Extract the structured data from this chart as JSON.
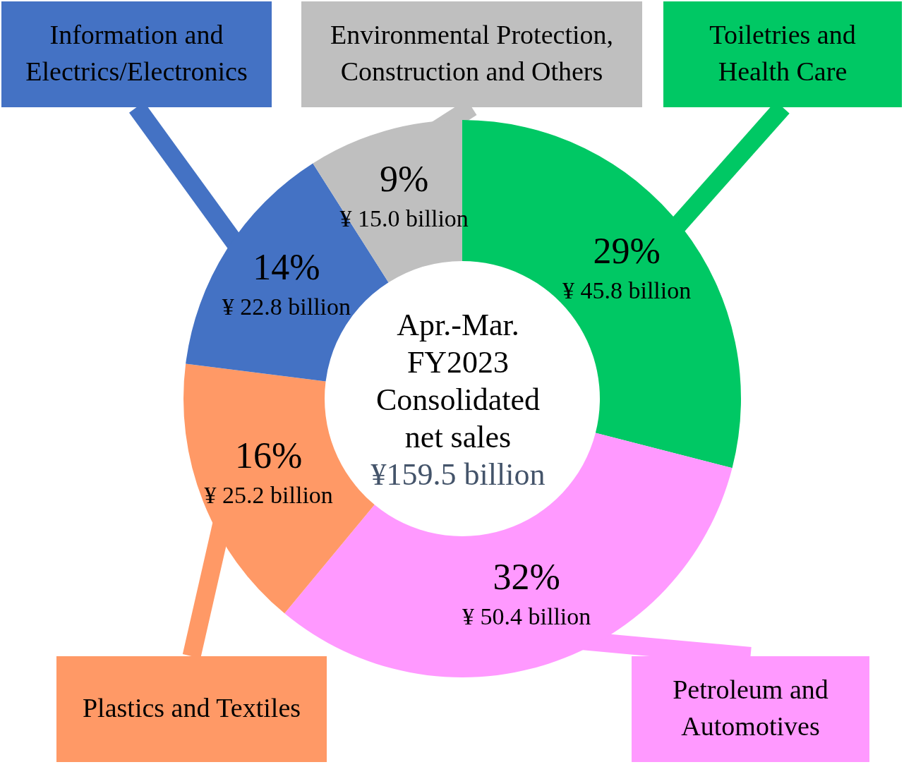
{
  "chart_data": {
    "type": "donut",
    "title": "Apr.-Mar.\nFY2023\nConsolidated\nnet sales",
    "categories": [
      "Toiletries and\nHealth Care",
      "Petroleum and\nAutomotives",
      "Plastics and Textiles",
      "Information and\nElectrics/Electronics",
      "Environmental Protection,\nConstruction and Others"
    ],
    "values": [
      29,
      32,
      16,
      14,
      9
    ],
    "value_labels": [
      "29%\n¥ 45.8 billion",
      "32%\n¥ 50.4 billion",
      "16%\n¥ 25.2 billion",
      "14%\n¥ 22.8 billion",
      "9%\n¥ 15.0 billion"
    ],
    "colors": [
      "#00c864",
      "#ff99ff",
      "#ff9966",
      "#4472c4",
      "#bfbfbf"
    ],
    "annotations": [
      "¥159.5 billion"
    ]
  }
}
